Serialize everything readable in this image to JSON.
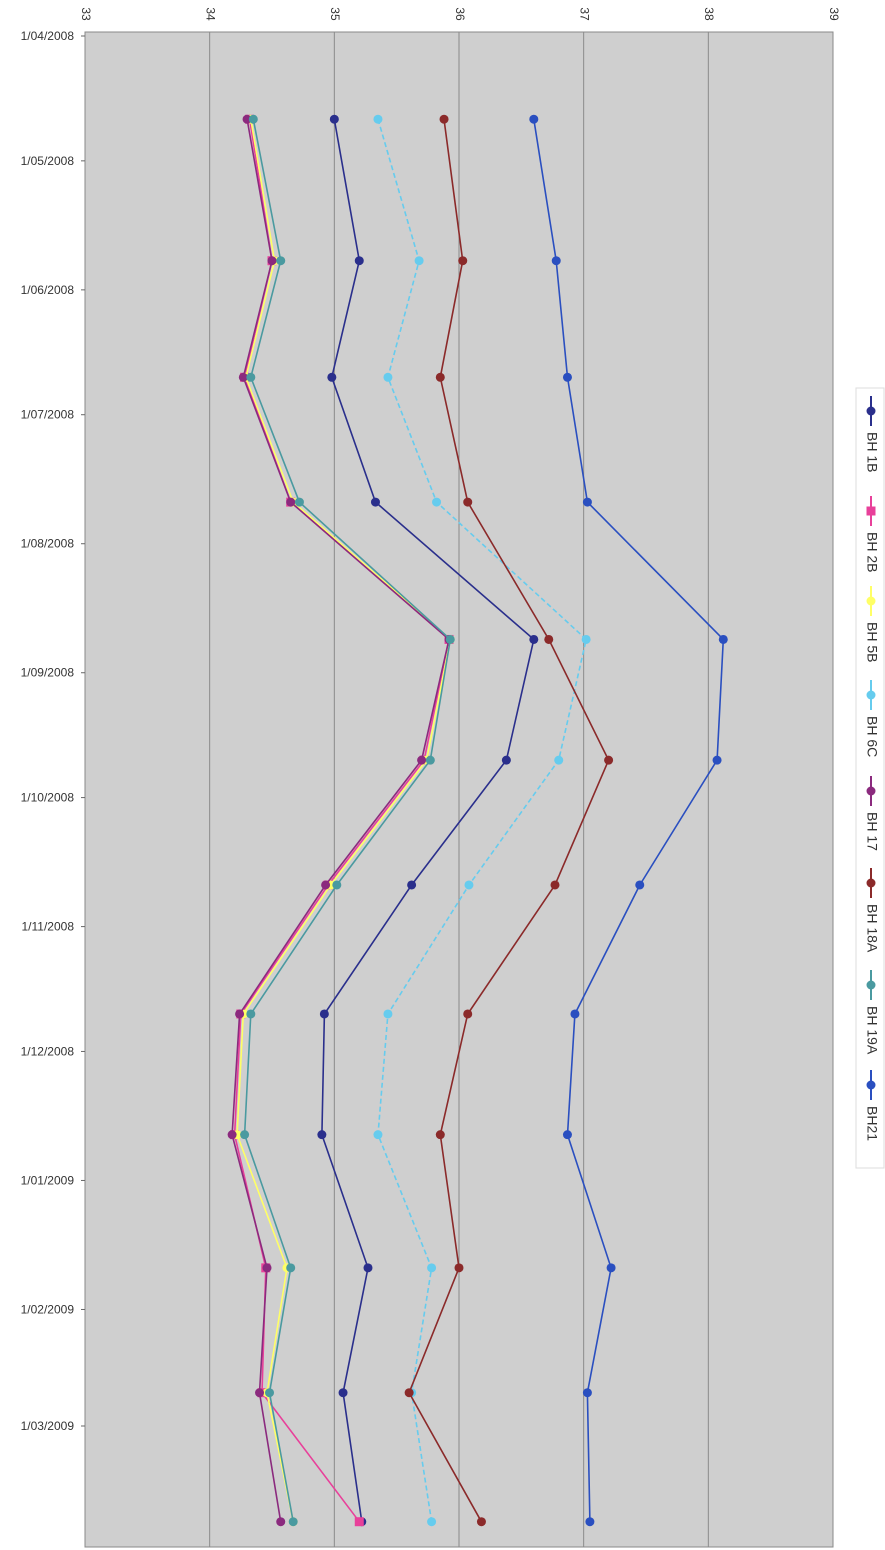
{
  "chart_data": {
    "type": "line",
    "orientation": "rotated-90-clockwise",
    "title": "",
    "xlabel": "",
    "ylabel": "",
    "x_ticks": [
      "1/04/2008",
      "1/05/2008",
      "1/06/2008",
      "1/07/2008",
      "1/08/2008",
      "1/09/2008",
      "1/10/2008",
      "1/11/2008",
      "1/12/2008",
      "1/01/2009",
      "1/02/2009",
      "1/03/2009"
    ],
    "y_ticks": [
      "33",
      "34",
      "35",
      "36",
      "37",
      "38",
      "39"
    ],
    "ylim": [
      33,
      39
    ],
    "grid": true,
    "legend_position": "right",
    "x": [
      "2008-04-21",
      "2008-05-25",
      "2008-06-22",
      "2008-07-22",
      "2008-08-24",
      "2008-09-22",
      "2008-10-22",
      "2008-11-22",
      "2008-12-21",
      "2009-01-22",
      "2009-02-21",
      "2009-03-24"
    ],
    "series": [
      {
        "name": "BH 1B",
        "color": "#2a2f8c",
        "marker": "circle",
        "values": [
          35.0,
          35.2,
          34.98,
          35.33,
          36.6,
          36.38,
          35.62,
          34.92,
          34.9,
          35.27,
          35.07,
          35.22
        ]
      },
      {
        "name": "BH 2B",
        "color": "#e8409a",
        "marker": "square",
        "values": [
          34.32,
          34.5,
          34.28,
          34.65,
          35.92,
          35.72,
          34.95,
          34.25,
          34.2,
          34.45,
          34.42,
          35.2
        ]
      },
      {
        "name": "BH 5B",
        "color": "#ffff66",
        "marker": "circle",
        "values": [
          34.33,
          34.52,
          34.29,
          34.67,
          35.93,
          35.74,
          34.97,
          34.27,
          34.22,
          34.62,
          34.46,
          34.67
        ]
      },
      {
        "name": "BH 6C",
        "color": "#66ccee",
        "marker": "circle",
        "values": [
          35.35,
          35.68,
          35.43,
          35.82,
          37.02,
          36.8,
          36.08,
          35.43,
          35.35,
          35.78,
          35.62,
          35.78
        ]
      },
      {
        "name": "BH 17",
        "color": "#8b2a7e",
        "marker": "circle",
        "values": [
          34.3,
          34.5,
          34.27,
          34.65,
          35.92,
          35.7,
          34.93,
          34.24,
          34.18,
          34.46,
          34.4,
          34.57
        ]
      },
      {
        "name": "BH 18A",
        "color": "#8b2a2a",
        "marker": "circle",
        "values": [
          35.88,
          36.03,
          35.85,
          36.07,
          36.72,
          37.2,
          36.77,
          36.07,
          35.85,
          36.0,
          35.6,
          36.18
        ]
      },
      {
        "name": "BH 19A",
        "color": "#4a9aa0",
        "marker": "circle",
        "values": [
          34.35,
          34.57,
          34.33,
          34.72,
          35.93,
          35.77,
          35.02,
          34.33,
          34.28,
          34.65,
          34.48,
          34.67
        ]
      },
      {
        "name": "BH21",
        "color": "#2a4fc0",
        "marker": "circle",
        "values": [
          36.6,
          36.78,
          36.87,
          37.03,
          38.12,
          38.07,
          37.45,
          36.93,
          36.87,
          37.22,
          37.03,
          37.05
        ]
      }
    ]
  }
}
